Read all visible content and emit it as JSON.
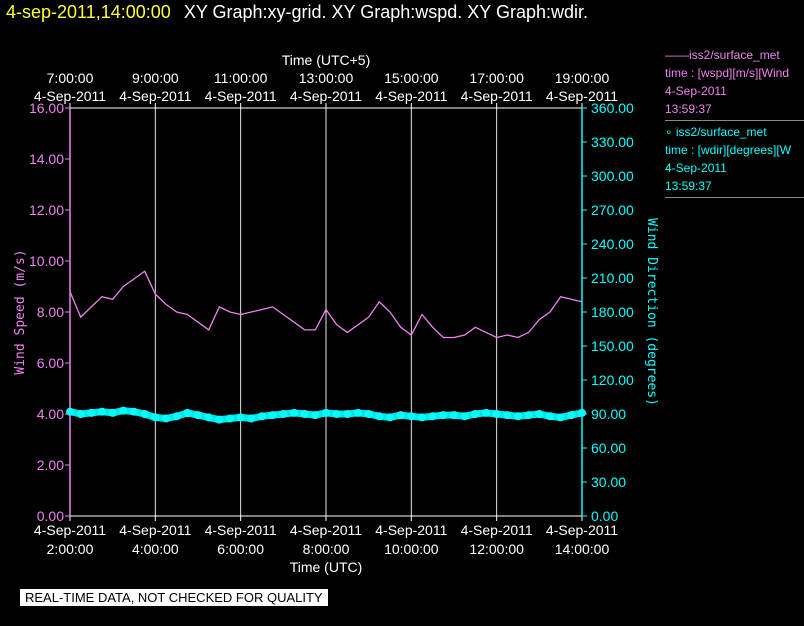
{
  "header": {
    "timestamp": "4-sep-2011,14:00:00",
    "graphs": "XY Graph:xy-grid.  XY Graph:wspd.  XY Graph:wdir."
  },
  "legend": {
    "wspd": {
      "title": "——iss2/surface_met",
      "var": "time : [wspd][m/s][Wind",
      "date": "4-Sep-2011",
      "time": "13:59:37"
    },
    "wdir": {
      "title": "∘ iss2/surface_met",
      "var": "time : [wdir][degrees][W",
      "date": "4-Sep-2011",
      "time": "13:59:37"
    }
  },
  "quality_notice": "REAL-TIME DATA, NOT CHECKED FOR QUALITY",
  "colors": {
    "wspd": "#ee82ee",
    "wdir": "#00ffff",
    "grid": "#ffffff",
    "timestamp": "#ffff33"
  },
  "chart_data": {
    "type": "line",
    "xlabel": "Time (UTC)",
    "x2label": "Time (UTC+5)",
    "xlim": [
      2,
      14
    ],
    "x_ticks_bottom": [
      {
        "date": "4-Sep-2011",
        "time": "2:00:00"
      },
      {
        "date": "4-Sep-2011",
        "time": "4:00:00"
      },
      {
        "date": "4-Sep-2011",
        "time": "6:00:00"
      },
      {
        "date": "4-Sep-2011",
        "time": "8:00:00"
      },
      {
        "date": "4-Sep-2011",
        "time": "10:00:00"
      },
      {
        "date": "4-Sep-2011",
        "time": "12:00:00"
      },
      {
        "date": "4-Sep-2011",
        "time": "14:00:00"
      }
    ],
    "x_ticks_top": [
      {
        "time": "7:00:00",
        "date": "4-Sep-2011"
      },
      {
        "time": "9:00:00",
        "date": "4-Sep-2011"
      },
      {
        "time": "11:00:00",
        "date": "4-Sep-2011"
      },
      {
        "time": "13:00:00",
        "date": "4-Sep-2011"
      },
      {
        "time": "15:00:00",
        "date": "4-Sep-2011"
      },
      {
        "time": "17:00:00",
        "date": "4-Sep-2011"
      },
      {
        "time": "19:00:00",
        "date": "4-Sep-2011"
      }
    ],
    "y_left": {
      "label": "Wind Speed (m/s)",
      "lim": [
        0,
        16
      ],
      "ticks": [
        "0.00",
        "2.00",
        "4.00",
        "6.00",
        "8.00",
        "10.00",
        "12.00",
        "14.00",
        "16.00"
      ]
    },
    "y_right": {
      "label": "Wind Direction (degrees)",
      "lim": [
        0,
        360
      ],
      "ticks": [
        "0.00",
        "30.00",
        "60.00",
        "90.00",
        "120.00",
        "150.00",
        "180.00",
        "210.00",
        "240.00",
        "270.00",
        "300.00",
        "330.00",
        "360.00"
      ]
    },
    "grid": "vertical",
    "series": [
      {
        "key": "wspd",
        "axis": "left",
        "style": "line",
        "x": [
          2.0,
          2.25,
          2.5,
          2.75,
          3.0,
          3.25,
          3.5,
          3.75,
          4.0,
          4.25,
          4.5,
          4.75,
          5.0,
          5.25,
          5.5,
          5.75,
          6.0,
          6.25,
          6.5,
          6.75,
          7.0,
          7.25,
          7.5,
          7.75,
          8.0,
          8.25,
          8.5,
          8.75,
          9.0,
          9.25,
          9.5,
          9.75,
          10.0,
          10.25,
          10.5,
          10.75,
          11.0,
          11.25,
          11.5,
          11.75,
          12.0,
          12.25,
          12.5,
          12.75,
          13.0,
          13.25,
          13.5,
          13.75,
          14.0
        ],
        "y": [
          8.8,
          7.8,
          8.2,
          8.6,
          8.5,
          9.0,
          9.3,
          9.6,
          8.7,
          8.3,
          8.0,
          7.9,
          7.6,
          7.3,
          8.2,
          8.0,
          7.9,
          8.0,
          8.1,
          8.2,
          7.9,
          7.6,
          7.3,
          7.3,
          8.1,
          7.5,
          7.2,
          7.5,
          7.8,
          8.4,
          8.0,
          7.4,
          7.1,
          7.9,
          7.4,
          7.0,
          7.0,
          7.1,
          7.4,
          7.2,
          7.0,
          7.1,
          7.0,
          7.2,
          7.7,
          8.0,
          8.6,
          8.5,
          8.4
        ]
      },
      {
        "key": "wdir",
        "axis": "right",
        "style": "points",
        "x": [
          2.0,
          2.25,
          2.5,
          2.75,
          3.0,
          3.25,
          3.5,
          3.75,
          4.0,
          4.25,
          4.5,
          4.75,
          5.0,
          5.25,
          5.5,
          5.75,
          6.0,
          6.25,
          6.5,
          6.75,
          7.0,
          7.25,
          7.5,
          7.75,
          8.0,
          8.25,
          8.5,
          8.75,
          9.0,
          9.25,
          9.5,
          9.75,
          10.0,
          10.25,
          10.5,
          10.75,
          11.0,
          11.25,
          11.5,
          11.75,
          12.0,
          12.25,
          12.5,
          12.75,
          13.0,
          13.25,
          13.5,
          13.75,
          14.0
        ],
        "y": [
          92,
          90,
          91,
          92,
          91,
          93,
          92,
          90,
          87,
          86,
          88,
          91,
          89,
          87,
          85,
          86,
          87,
          86,
          88,
          89,
          90,
          91,
          90,
          89,
          91,
          90,
          90,
          91,
          90,
          88,
          87,
          89,
          88,
          87,
          88,
          89,
          89,
          88,
          90,
          91,
          90,
          89,
          88,
          89,
          90,
          88,
          87,
          89,
          91
        ]
      }
    ]
  }
}
